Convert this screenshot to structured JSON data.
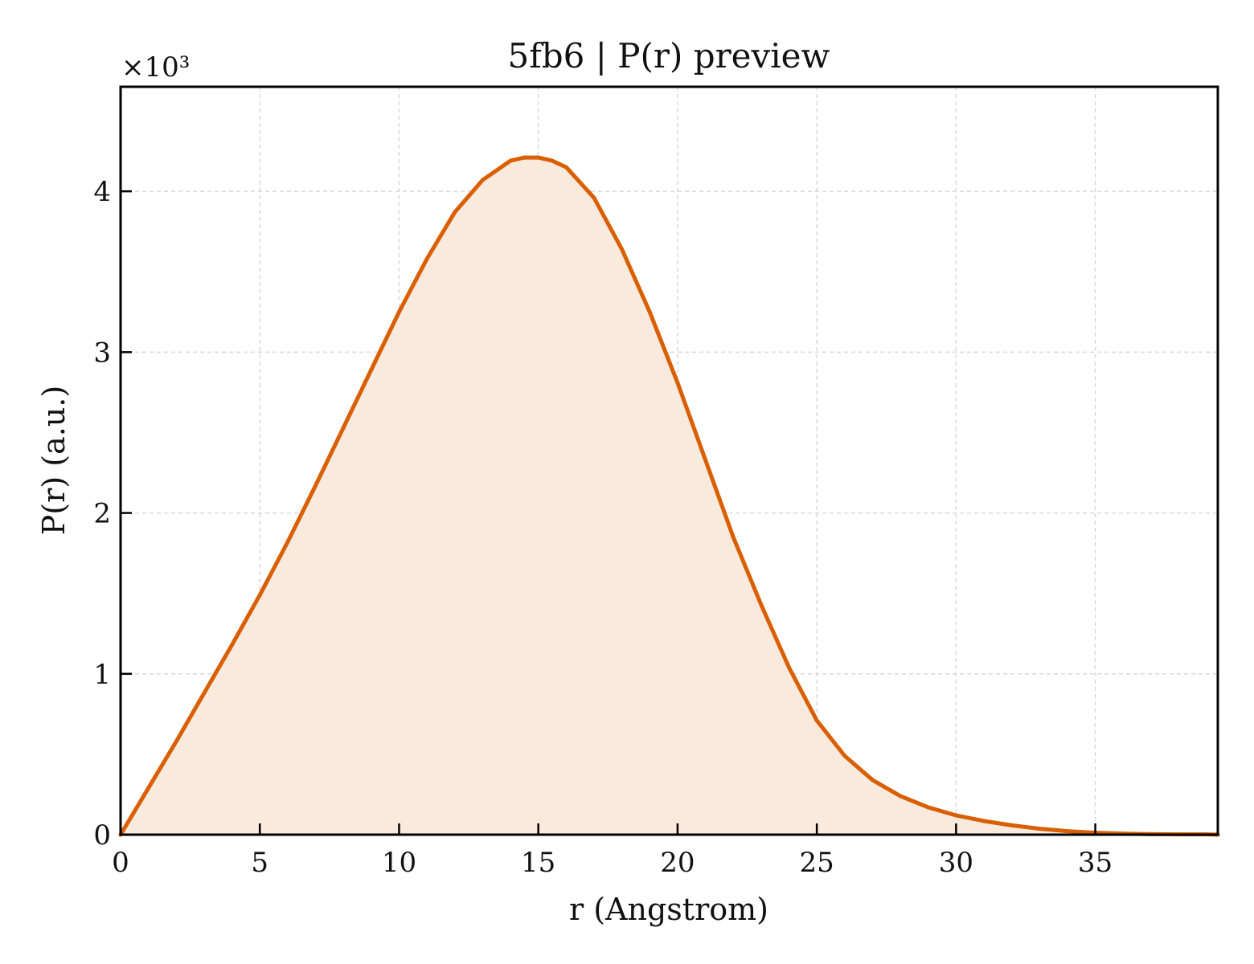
{
  "colors": {
    "line": "#d95f02",
    "fill": "#f9eade",
    "grid": "#d9d9d9",
    "axis": "#000000"
  },
  "chart_data": {
    "type": "area",
    "title": "5fb6 | P(r) preview",
    "xlabel": "r (Angstrom)",
    "ylabel": "P(r) (a.u.)",
    "y_scale_label": "×10³",
    "y_multiplier": 1000,
    "xlim": [
      0,
      39.4
    ],
    "ylim": [
      0,
      4.65
    ],
    "xticks": [
      0,
      5,
      10,
      15,
      20,
      25,
      30,
      35
    ],
    "yticks": [
      0,
      1,
      2,
      3,
      4
    ],
    "grid": true,
    "legend": "none",
    "series": [
      {
        "x": [
          0,
          1,
          2,
          3,
          4,
          5,
          6,
          7,
          8,
          9,
          10,
          11,
          12,
          13,
          14,
          14.5,
          15,
          15.5,
          16,
          17,
          18,
          19,
          20,
          21,
          22,
          23,
          24,
          25,
          26,
          27,
          28,
          29,
          30,
          31,
          32,
          33,
          34,
          35,
          36,
          37,
          38,
          39,
          39.4
        ],
        "values": [
          0,
          0.29,
          0.58,
          0.88,
          1.18,
          1.49,
          1.82,
          2.17,
          2.53,
          2.89,
          3.25,
          3.58,
          3.87,
          4.07,
          4.19,
          4.21,
          4.21,
          4.19,
          4.15,
          3.96,
          3.64,
          3.25,
          2.81,
          2.33,
          1.85,
          1.43,
          1.04,
          0.71,
          0.49,
          0.34,
          0.24,
          0.17,
          0.12,
          0.085,
          0.058,
          0.037,
          0.022,
          0.012,
          0.006,
          0.003,
          0.002,
          0.002,
          0.0
        ]
      }
    ]
  }
}
